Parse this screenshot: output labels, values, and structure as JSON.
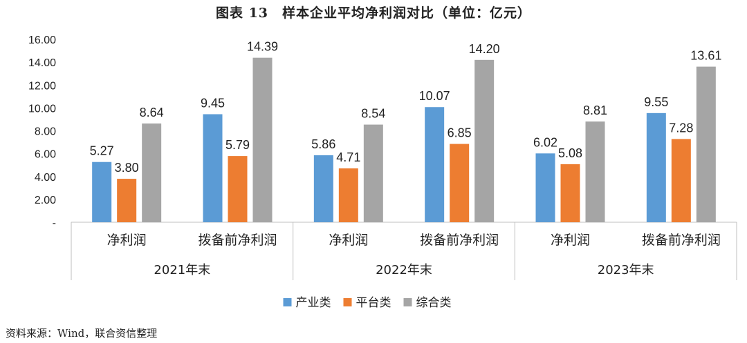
{
  "chart_data": {
    "type": "bar",
    "title": "图表 13　样本企业平均净利润对比（单位：亿元）",
    "groups": [
      {
        "label": "2021年末",
        "categories": [
          "净利润",
          "拨备前净利润"
        ]
      },
      {
        "label": "2022年末",
        "categories": [
          "净利润",
          "拨备前净利润"
        ]
      },
      {
        "label": "2023年末",
        "categories": [
          "净利润",
          "拨备前净利润"
        ]
      }
    ],
    "series": [
      {
        "name": "产业类",
        "color": "#5B9BD5",
        "values": [
          5.27,
          9.45,
          5.86,
          10.07,
          6.02,
          9.55
        ]
      },
      {
        "name": "平台类",
        "color": "#ED7D31",
        "values": [
          3.8,
          5.79,
          4.71,
          6.85,
          5.08,
          7.28
        ]
      },
      {
        "name": "综合类",
        "color": "#A5A5A5",
        "values": [
          8.64,
          14.39,
          8.54,
          14.2,
          8.81,
          13.61
        ]
      }
    ],
    "ylim": [
      0,
      16
    ],
    "yticks": [
      "-",
      "2.00",
      "4.00",
      "6.00",
      "8.00",
      "10.00",
      "12.00",
      "14.00",
      "16.00"
    ],
    "grid": false,
    "legend_position": "bottom"
  },
  "source": "资料来源：Wind，联合资信整理"
}
